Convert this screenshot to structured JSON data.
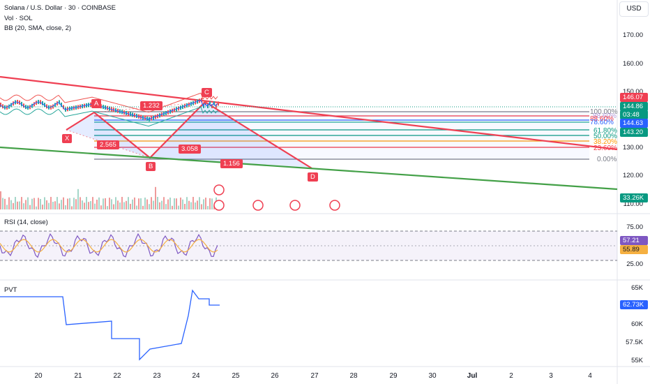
{
  "legend": {
    "symbol": "Solana / U.S. Dollar · 30 · COINBASE",
    "vol": "Vol · SOL",
    "bb": "BB (20, SMA, close, 2)",
    "rsi": "RSI (14, close)",
    "pvt": "PVT"
  },
  "currency_button": "USD",
  "price_axis": [
    "170.00",
    "160.00",
    "150.00",
    "130.00",
    "120.00",
    "110.00"
  ],
  "rsi_axis": [
    "75.00",
    "25.00"
  ],
  "pvt_axis": [
    "65K",
    "60K",
    "57.5K",
    "55K"
  ],
  "time_axis": [
    "20",
    "21",
    "22",
    "23",
    "24",
    "25",
    "26",
    "27",
    "28",
    "29",
    "30",
    "Jul",
    "2",
    "3",
    "4"
  ],
  "price_tags": {
    "top": "146.07",
    "last": "144.86",
    "countdown": "03:48",
    "bb_mid": "144.63",
    "bb_low": "143.20",
    "volume": "33.26K",
    "rsi": "57.21",
    "rsi_ma": "55.89",
    "pvt": "62.73K"
  },
  "fib_levels": [
    "100.00%",
    "88.60%",
    "78.60%",
    "61.80%",
    "50.00%",
    "38.20%",
    "23.60%",
    "0.00%"
  ],
  "fib_overlap": "88.60%",
  "pattern": {
    "points": [
      "X",
      "A",
      "B",
      "C",
      "D"
    ],
    "ratios": {
      "xa_b": "2.565",
      "ab_c": "1.232",
      "bc_d": "3.058",
      "xd": "1.156"
    }
  },
  "colors": {
    "red": "#ef3f52",
    "green": "#089981",
    "blue": "#2962ff",
    "teal": "#22ab94"
  }
}
